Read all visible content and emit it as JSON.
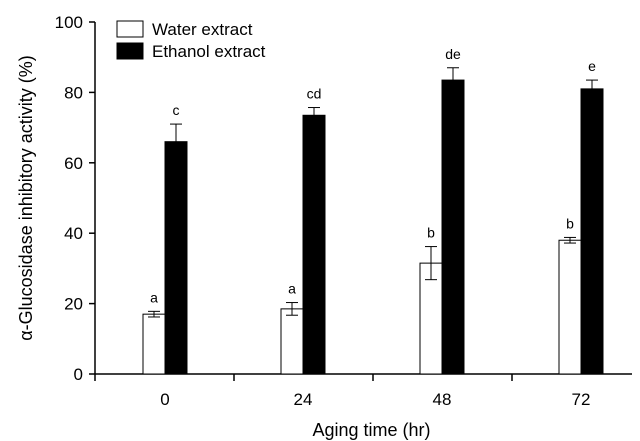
{
  "chart_data": {
    "type": "bar",
    "xlabel": "Aging time (hr)",
    "ylabel": "α-Glucosidase inhibitory activity (%)",
    "ylim": [
      0,
      100
    ],
    "yticks": [
      0,
      20,
      40,
      60,
      80,
      100
    ],
    "categories": [
      "0",
      "24",
      "48",
      "72"
    ],
    "series": [
      {
        "name": "Water extract",
        "color": "#ffffff",
        "values": [
          17,
          18.5,
          31.5,
          38
        ],
        "errors": [
          0.8,
          1.8,
          4.7,
          0.8
        ],
        "letters": [
          "a",
          "a",
          "b",
          "b"
        ]
      },
      {
        "name": "Ethanol extract",
        "color": "#000000",
        "values": [
          66,
          73.5,
          83.5,
          81
        ],
        "errors": [
          5.0,
          2.2,
          3.5,
          2.5
        ],
        "letters": [
          "c",
          "cd",
          "de",
          "e"
        ]
      }
    ],
    "legend": {
      "position": "top-left"
    },
    "grid": false
  }
}
